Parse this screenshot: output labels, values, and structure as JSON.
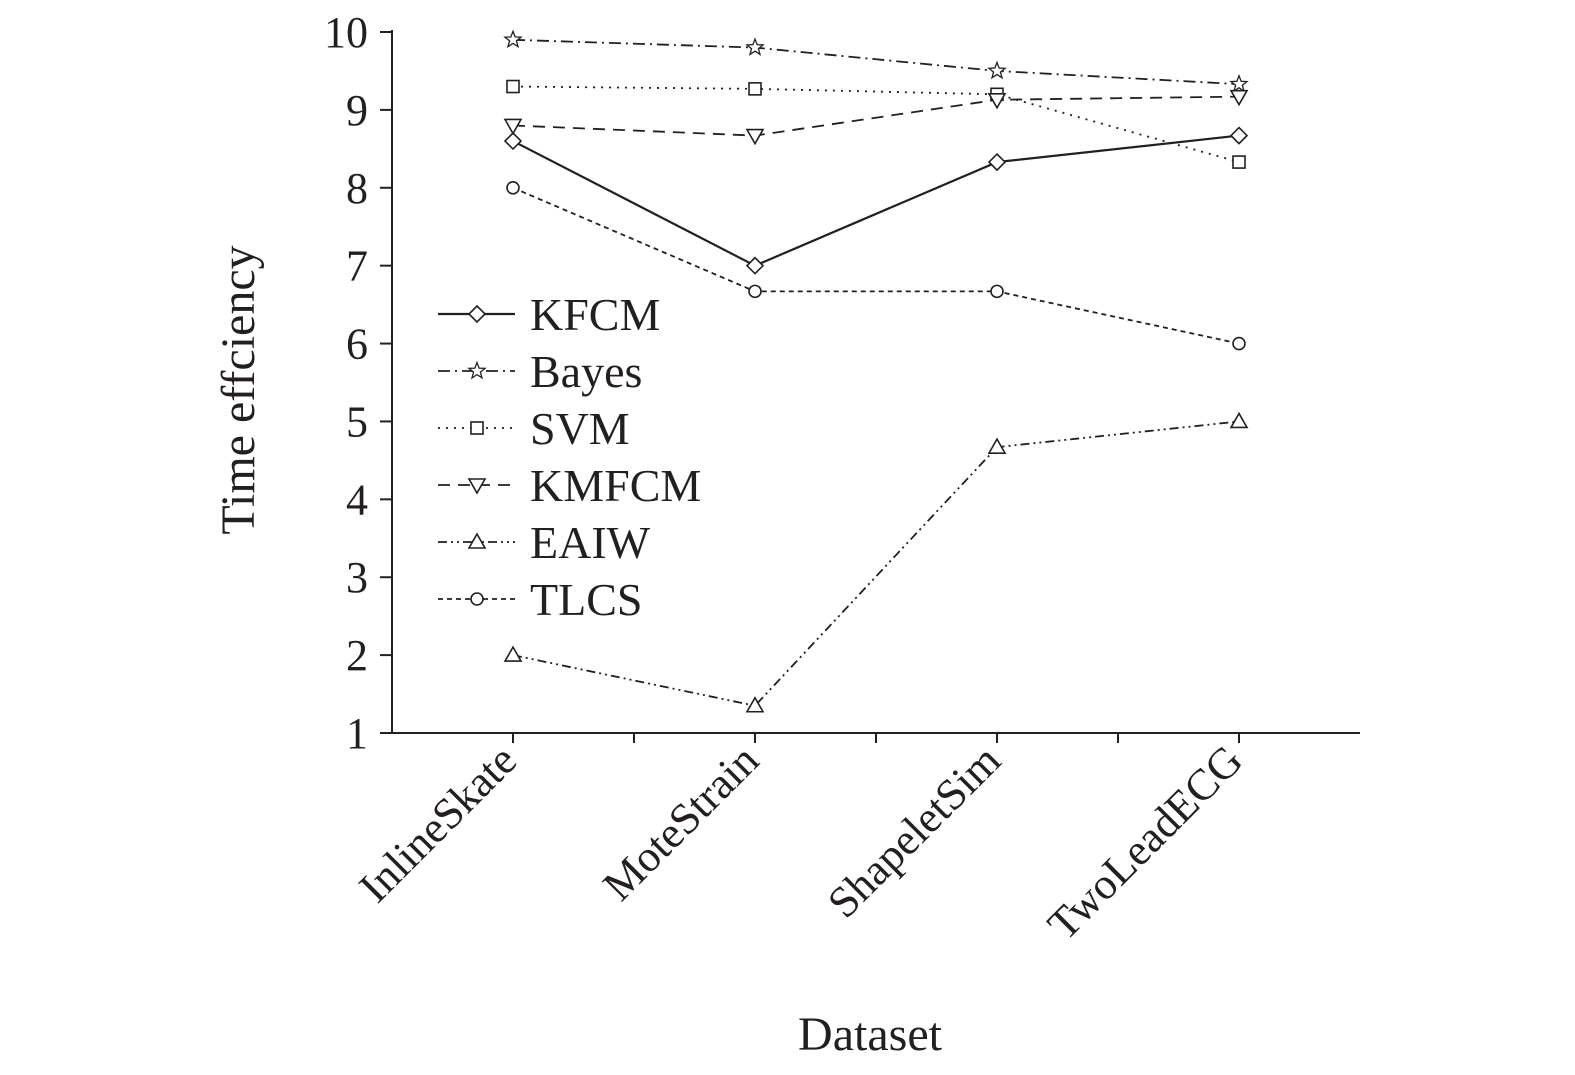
{
  "chart_data": {
    "type": "line",
    "title": "",
    "xlabel": "Dataset",
    "ylabel": "Time effciency",
    "categories": [
      "InlineSkate",
      "MoteStrain",
      "ShapeletSim",
      "TwoLeadECG"
    ],
    "yticks": [
      "1",
      "2",
      "3",
      "4",
      "5",
      "6",
      "7",
      "8",
      "9",
      "10"
    ],
    "ylim": [
      1,
      10
    ],
    "grid": false,
    "legend_position": "center-left",
    "line_color": "#231f20",
    "series": [
      {
        "name": "KFCM",
        "marker": "diamond-icon",
        "dash": "solid",
        "values": [
          8.6,
          7.0,
          8.33,
          8.67
        ]
      },
      {
        "name": "Bayes",
        "marker": "star-icon",
        "dash": "dash-dot",
        "values": [
          9.9,
          9.8,
          9.5,
          9.33
        ]
      },
      {
        "name": "SVM",
        "marker": "square-icon",
        "dash": "dotted",
        "values": [
          9.3,
          9.27,
          9.2,
          8.33
        ]
      },
      {
        "name": "KMFCM",
        "marker": "triangle-down-icon",
        "dash": "dashed",
        "values": [
          8.8,
          8.67,
          9.13,
          9.17
        ]
      },
      {
        "name": "EAIW",
        "marker": "triangle-up-icon",
        "dash": "dash-dot-dot",
        "values": [
          2.0,
          1.35,
          4.67,
          5.0
        ]
      },
      {
        "name": "TLCS",
        "marker": "circle-icon",
        "dash": "short-dash",
        "values": [
          8.0,
          6.67,
          6.67,
          6.0
        ]
      }
    ]
  }
}
